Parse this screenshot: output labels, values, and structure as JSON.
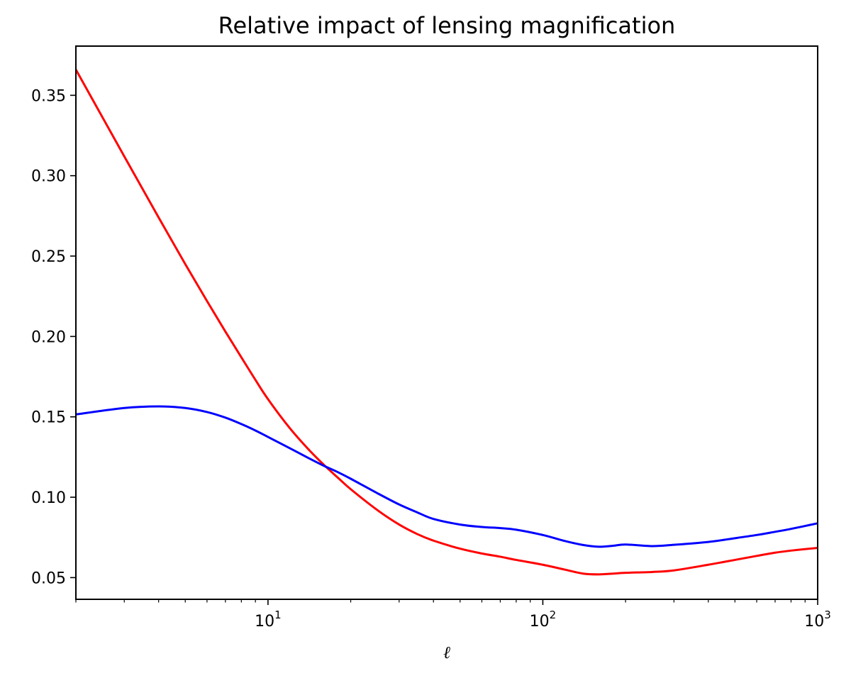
{
  "chart_data": {
    "type": "line",
    "title": "Relative impact of  lensing magnification",
    "xlabel": "ℓ",
    "ylabel": "",
    "xscale": "log",
    "xlim": [
      2,
      1000
    ],
    "ylim": [
      0.0365,
      0.3806
    ],
    "grid": false,
    "legend": "none",
    "x_major_ticks": [
      {
        "value": 10,
        "base": "10",
        "exp": "1"
      },
      {
        "value": 100,
        "base": "10",
        "exp": "2"
      },
      {
        "value": 1000,
        "base": "10",
        "exp": "3"
      }
    ],
    "x_minor_ticks": [
      2,
      3,
      4,
      5,
      6,
      7,
      8,
      9,
      20,
      30,
      40,
      50,
      60,
      70,
      80,
      90,
      200,
      300,
      400,
      500,
      600,
      700,
      800,
      900
    ],
    "y_ticks": [
      {
        "value": 0.05,
        "label": "0.05"
      },
      {
        "value": 0.1,
        "label": "0.10"
      },
      {
        "value": 0.15,
        "label": "0.15"
      },
      {
        "value": 0.2,
        "label": "0.20"
      },
      {
        "value": 0.25,
        "label": "0.25"
      },
      {
        "value": 0.3,
        "label": "0.30"
      },
      {
        "value": 0.35,
        "label": "0.35"
      }
    ],
    "series": [
      {
        "name": "red-curve",
        "color": "#ff0000",
        "x": [
          2,
          3,
          4,
          5,
          6,
          7,
          8,
          9,
          10,
          12,
          14,
          16,
          18,
          20,
          25,
          30,
          35,
          40,
          50,
          60,
          70,
          80,
          100,
          120,
          140,
          160,
          180,
          200,
          250,
          300,
          400,
          500,
          600,
          700,
          800,
          1000
        ],
        "y": [
          0.366,
          0.312,
          0.274,
          0.245,
          0.222,
          0.203,
          0.187,
          0.173,
          0.161,
          0.143,
          0.13,
          0.12,
          0.112,
          0.105,
          0.092,
          0.083,
          0.077,
          0.073,
          0.068,
          0.065,
          0.063,
          0.061,
          0.058,
          0.055,
          0.0525,
          0.052,
          0.0525,
          0.053,
          0.0535,
          0.0545,
          0.058,
          0.061,
          0.0635,
          0.0655,
          0.0668,
          0.0685
        ]
      },
      {
        "name": "blue-curve",
        "color": "#0000ff",
        "x": [
          2,
          3,
          4,
          5,
          6,
          7,
          8,
          9,
          10,
          12,
          14,
          16,
          18,
          20,
          25,
          30,
          35,
          40,
          50,
          60,
          70,
          80,
          100,
          120,
          140,
          160,
          180,
          200,
          250,
          300,
          400,
          500,
          600,
          700,
          800,
          1000
        ],
        "y": [
          0.1515,
          0.1555,
          0.1565,
          0.1555,
          0.153,
          0.1495,
          0.1455,
          0.1415,
          0.1375,
          0.1305,
          0.1245,
          0.1195,
          0.1155,
          0.1115,
          0.1025,
          0.0955,
          0.0905,
          0.0865,
          0.083,
          0.0815,
          0.0808,
          0.0798,
          0.0765,
          0.0728,
          0.0703,
          0.0692,
          0.0698,
          0.0706,
          0.0696,
          0.0704,
          0.0722,
          0.0745,
          0.0765,
          0.0785,
          0.0803,
          0.0838
        ]
      }
    ]
  }
}
